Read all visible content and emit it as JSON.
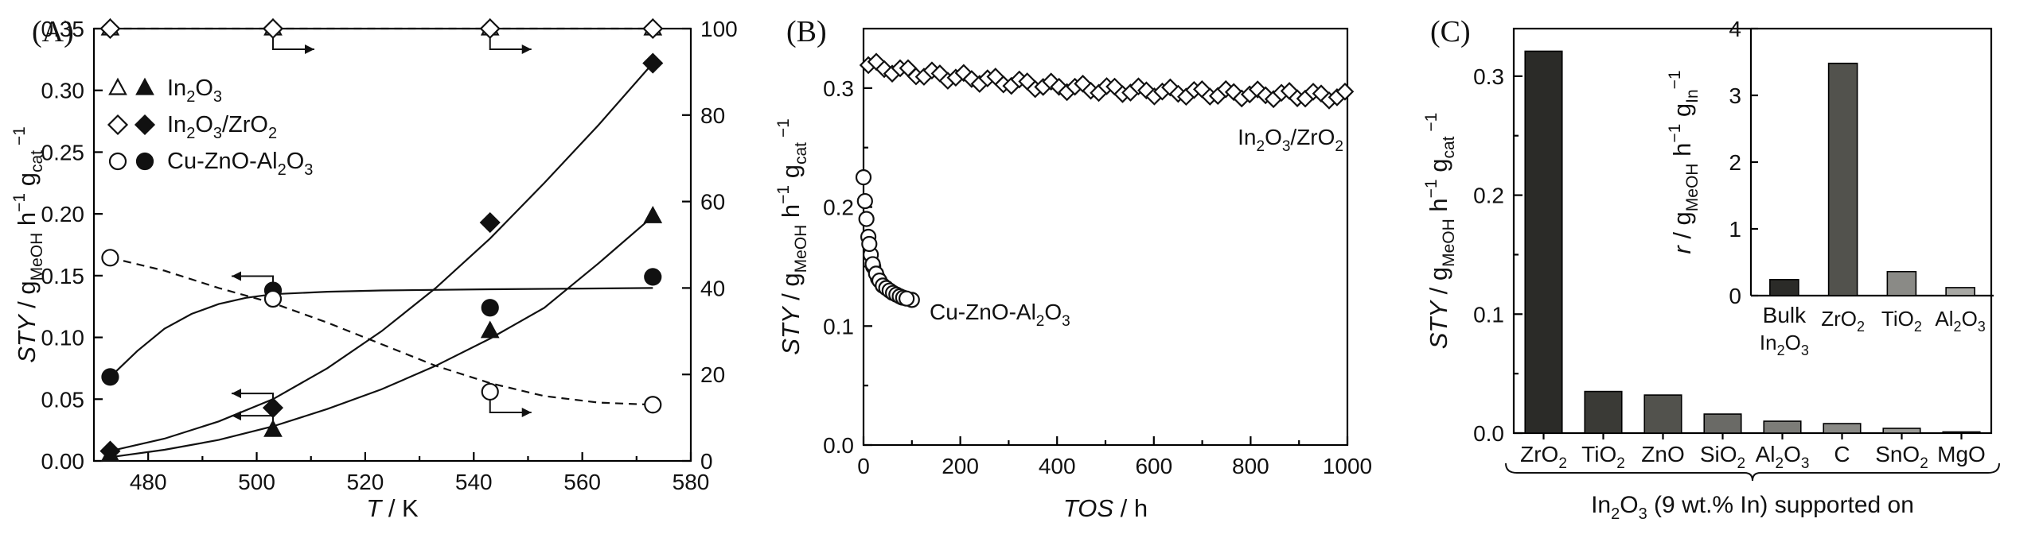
{
  "chart_data": [
    {
      "panel": "(A)",
      "type": "scatter",
      "xlabel_pre": "T",
      "xlabel_post": " / K",
      "ylabel": {
        "it": "STY",
        "a": " / g",
        "s1": "MeOH",
        "b": " h",
        "p1": "−1",
        "c": " g",
        "s2": "cat",
        "p2": " −1"
      },
      "xlim": [
        470,
        580
      ],
      "ylim": [
        0,
        0.35
      ],
      "y2lim": [
        0,
        100
      ],
      "xticks": [
        "480",
        "500",
        "520",
        "540",
        "560",
        "580"
      ],
      "yticks": [
        "0.00",
        "0.05",
        "0.10",
        "0.15",
        "0.20",
        "0.25",
        "0.30",
        "0.35"
      ],
      "y2ticks": [
        "0",
        "20",
        "40",
        "60",
        "80",
        "100"
      ],
      "legend": [
        {
          "marker": "triangle",
          "pre": "In",
          "s1": "2",
          "mid": "O",
          "s2": "3",
          "post": ""
        },
        {
          "marker": "diamond",
          "pre": "In",
          "s1": "2",
          "mid": "O",
          "s2": "3",
          "post": "/ZrO",
          "s3": "2"
        },
        {
          "marker": "circle",
          "pre": "Cu-ZnO-Al",
          "s1": "2",
          "mid": "O",
          "s2": "3",
          "post": ""
        }
      ],
      "series": [
        {
          "name": "In2O3",
          "marker": "triangle",
          "axis": "left",
          "filled": true,
          "x": [
            473,
            503,
            543,
            573
          ],
          "y": [
            0.005,
            0.025,
            0.105,
            0.198
          ]
        },
        {
          "name": "In2O3/ZrO2",
          "marker": "diamond",
          "axis": "left",
          "filled": true,
          "x": [
            473,
            503,
            543,
            573
          ],
          "y": [
            0.008,
            0.043,
            0.193,
            0.322
          ]
        },
        {
          "name": "Cu-ZnO-Al2O3",
          "marker": "circle",
          "axis": "left",
          "filled": true,
          "x": [
            473,
            503,
            543,
            573
          ],
          "y": [
            0.068,
            0.138,
            0.124,
            0.149
          ]
        },
        {
          "name": "In2O3 selectivity",
          "marker": "triangle",
          "axis": "right",
          "filled": false,
          "x": [
            473,
            503,
            543,
            573
          ],
          "y": [
            100,
            100,
            100,
            100
          ]
        },
        {
          "name": "In2O3/ZrO2 selectivity",
          "marker": "diamond",
          "axis": "right",
          "filled": false,
          "x": [
            473,
            503,
            543,
            573
          ],
          "y": [
            100,
            100,
            100,
            100
          ]
        },
        {
          "name": "Cu-ZnO-Al2O3 selectivity",
          "marker": "circle",
          "axis": "right",
          "filled": false,
          "x": [
            473,
            503,
            543,
            573
          ],
          "y": [
            47,
            37.5,
            16,
            13
          ]
        }
      ],
      "fits": [
        {
          "series": "In2O3",
          "axis": "left",
          "style": "solid",
          "x": [
            473,
            483,
            493,
            503,
            513,
            523,
            533,
            543,
            553,
            563,
            573
          ],
          "y": [
            0.003,
            0.009,
            0.017,
            0.028,
            0.042,
            0.058,
            0.077,
            0.099,
            0.124,
            0.16,
            0.198
          ]
        },
        {
          "series": "In2O3/ZrO2",
          "axis": "left",
          "style": "solid",
          "x": [
            473,
            483,
            493,
            503,
            513,
            523,
            533,
            543,
            553,
            563,
            573
          ],
          "y": [
            0.008,
            0.018,
            0.032,
            0.05,
            0.075,
            0.105,
            0.14,
            0.18,
            0.225,
            0.272,
            0.322
          ]
        },
        {
          "series": "Cu-ZnO-Al2O3",
          "axis": "left",
          "style": "solid",
          "x": [
            473,
            478,
            483,
            488,
            493,
            498,
            503,
            513,
            523,
            543,
            573
          ],
          "y": [
            0.068,
            0.089,
            0.107,
            0.119,
            0.127,
            0.132,
            0.135,
            0.137,
            0.138,
            0.139,
            0.14
          ]
        },
        {
          "series": "Cu-ZnO-Al2O3 selectivity",
          "axis": "right",
          "style": "dashed",
          "x": [
            473,
            483,
            493,
            503,
            513,
            523,
            533,
            543,
            553,
            563,
            573
          ],
          "y": [
            47,
            44,
            40,
            36.5,
            32,
            27,
            22,
            18,
            15,
            13.5,
            13
          ]
        },
        {
          "series": "In2O3 selectivity",
          "axis": "right",
          "style": "dashed",
          "x": [
            473,
            573
          ],
          "y": [
            100,
            100
          ]
        }
      ],
      "arrows": [
        {
          "x": 503,
          "y": 100,
          "axis": "right",
          "dir": "right"
        },
        {
          "x": 543,
          "y": 100,
          "axis": "right",
          "dir": "right"
        },
        {
          "x": 543,
          "y": 16,
          "axis": "right",
          "dir": "right"
        },
        {
          "x": 503,
          "y": 0.138,
          "axis": "left",
          "dir": "left"
        },
        {
          "x": 503,
          "y": 0.043,
          "axis": "left",
          "dir": "left"
        },
        {
          "x": 503,
          "y": 0.025,
          "axis": "left",
          "dir": "left"
        }
      ]
    },
    {
      "panel": "(B)",
      "type": "scatter",
      "xlabel_pre": "TOS",
      "xlabel_post": " / h",
      "ylabel": {
        "it": "STY",
        "a": " / g",
        "s1": "MeOH",
        "b": " h",
        "p1": "−1",
        "c": " g",
        "s2": "cat",
        "p2": " −1"
      },
      "xlim": [
        0,
        1000
      ],
      "ylim": [
        0,
        0.35
      ],
      "xticks": [
        "0",
        "200",
        "400",
        "600",
        "800",
        "1000"
      ],
      "yticks": [
        "0.0",
        "0.1",
        "0.2",
        "0.3"
      ],
      "labels": [
        {
          "pre": "In",
          "s1": "2",
          "mid": "O",
          "s2": "3",
          "post": "/ZrO",
          "s3": "2"
        },
        {
          "pre": "Cu-ZnO-Al",
          "s1": "2",
          "mid": "O",
          "s2": "3",
          "post": ""
        }
      ],
      "series": [
        {
          "name": "In2O3/ZrO2",
          "marker": "diamond",
          "x": [
            0,
            100,
            200,
            300,
            400,
            500,
            600,
            700,
            800,
            900,
            1000
          ],
          "y": [
            0.32,
            0.313,
            0.309,
            0.305,
            0.301,
            0.299,
            0.297,
            0.296,
            0.295,
            0.294,
            0.293
          ]
        },
        {
          "name": "Cu-ZnO-Al2O3",
          "marker": "circle",
          "x": [
            0,
            3,
            6,
            10,
            15,
            20,
            30,
            40,
            60,
            80,
            100
          ],
          "y": [
            0.225,
            0.205,
            0.19,
            0.175,
            0.16,
            0.15,
            0.14,
            0.134,
            0.128,
            0.124,
            0.122
          ]
        }
      ]
    },
    {
      "panel": "(C)",
      "type": "bar",
      "ylabel": {
        "it": "STY",
        "a": " / g",
        "s1": "MeOH",
        "b": " h",
        "p1": "−1",
        "c": " g",
        "s2": "cat",
        "p2": " −1"
      },
      "ylim": [
        0,
        0.34
      ],
      "yticks": [
        "0.0",
        "0.1",
        "0.2",
        "0.3"
      ],
      "categories": [
        {
          "pre": "ZrO",
          "s1": "2",
          "mid": "",
          "s2": "",
          "post": ""
        },
        {
          "pre": "TiO",
          "s1": "2",
          "mid": "",
          "s2": "",
          "post": ""
        },
        {
          "pre": "ZnO",
          "s1": "",
          "mid": "",
          "s2": "",
          "post": ""
        },
        {
          "pre": "SiO",
          "s1": "2",
          "mid": "",
          "s2": "",
          "post": ""
        },
        {
          "pre": "Al",
          "s1": "2",
          "mid": "O",
          "s2": "3",
          "post": ""
        },
        {
          "pre": "C",
          "s1": "",
          "mid": "",
          "s2": "",
          "post": ""
        },
        {
          "pre": "SnO",
          "s1": "2",
          "mid": "",
          "s2": "",
          "post": ""
        },
        {
          "pre": "MgO",
          "s1": "",
          "mid": "",
          "s2": "",
          "post": ""
        }
      ],
      "values": [
        0.321,
        0.035,
        0.032,
        0.016,
        0.01,
        0.008,
        0.004,
        0.001
      ],
      "colors": [
        "#2b2b28",
        "#3a3a36",
        "#52524d",
        "#6a6a66",
        "#7c7c78",
        "#8a8a86",
        "#9a9a96",
        "#a8a8a4"
      ],
      "group_label": {
        "pre": "In",
        "s1": "2",
        "mid": "O",
        "s2": "3",
        "post": " (9 wt.% In) supported on"
      },
      "inset": {
        "type": "bar",
        "ylabel": {
          "it": "r",
          "a": " / g",
          "s1": "MeOH",
          "b": " h",
          "p1": "−1",
          "c": " g",
          "s2": "In",
          "p2": "−1"
        },
        "ylim": [
          0,
          4
        ],
        "yticks": [
          "0",
          "1",
          "2",
          "3",
          "4"
        ],
        "categories": [
          {
            "l1": "Bulk",
            "pre": "In",
            "s1": "2",
            "mid": "O",
            "s2": "3",
            "post": ""
          },
          {
            "l1": "",
            "pre": "ZrO",
            "s1": "2",
            "mid": "",
            "s2": "",
            "post": ""
          },
          {
            "l1": "",
            "pre": "TiO",
            "s1": "2",
            "mid": "",
            "s2": "",
            "post": ""
          },
          {
            "l1": "",
            "pre": "Al",
            "s1": "2",
            "mid": "O",
            "s2": "3",
            "post": ""
          }
        ],
        "values": [
          0.24,
          3.48,
          0.36,
          0.12
        ],
        "colors": [
          "#2b2b28",
          "#52524d",
          "#8a8a86",
          "#a8a8a4"
        ]
      }
    }
  ]
}
